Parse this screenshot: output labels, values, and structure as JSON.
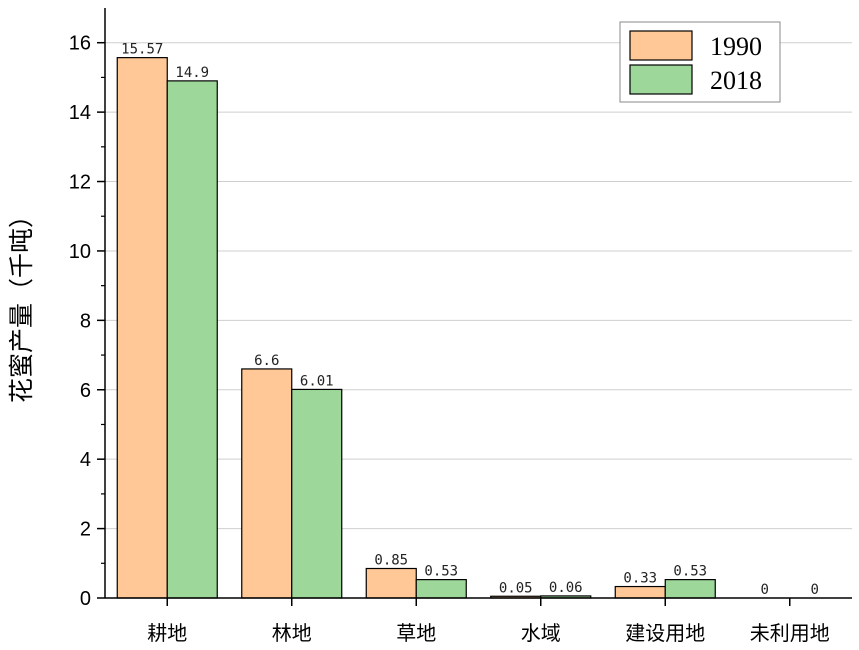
{
  "chart_data": {
    "type": "bar",
    "title": "",
    "xlabel": "",
    "ylabel": "花蜜产量（千吨）",
    "categories": [
      "耕地",
      "林地",
      "草地",
      "水域",
      "建设用地",
      "未利用地"
    ],
    "series": [
      {
        "name": "1990",
        "values": [
          15.57,
          6.6,
          0.85,
          0.05,
          0.33,
          0
        ],
        "labels": [
          "15.57",
          "6.6",
          "0.85",
          "0.05",
          "0.33",
          "0"
        ],
        "color": "#FFC896"
      },
      {
        "name": "2018",
        "values": [
          14.9,
          6.01,
          0.53,
          0.06,
          0.53,
          0
        ],
        "labels": [
          "14.9",
          "6.01",
          "0.53",
          "0.06",
          "0.53",
          "0"
        ],
        "color": "#9ED79A"
      }
    ],
    "ylim": [
      0,
      17
    ],
    "yticks": [
      0,
      2,
      4,
      6,
      8,
      10,
      12,
      14,
      16
    ],
    "grid": true,
    "legend_position": "top-right"
  }
}
